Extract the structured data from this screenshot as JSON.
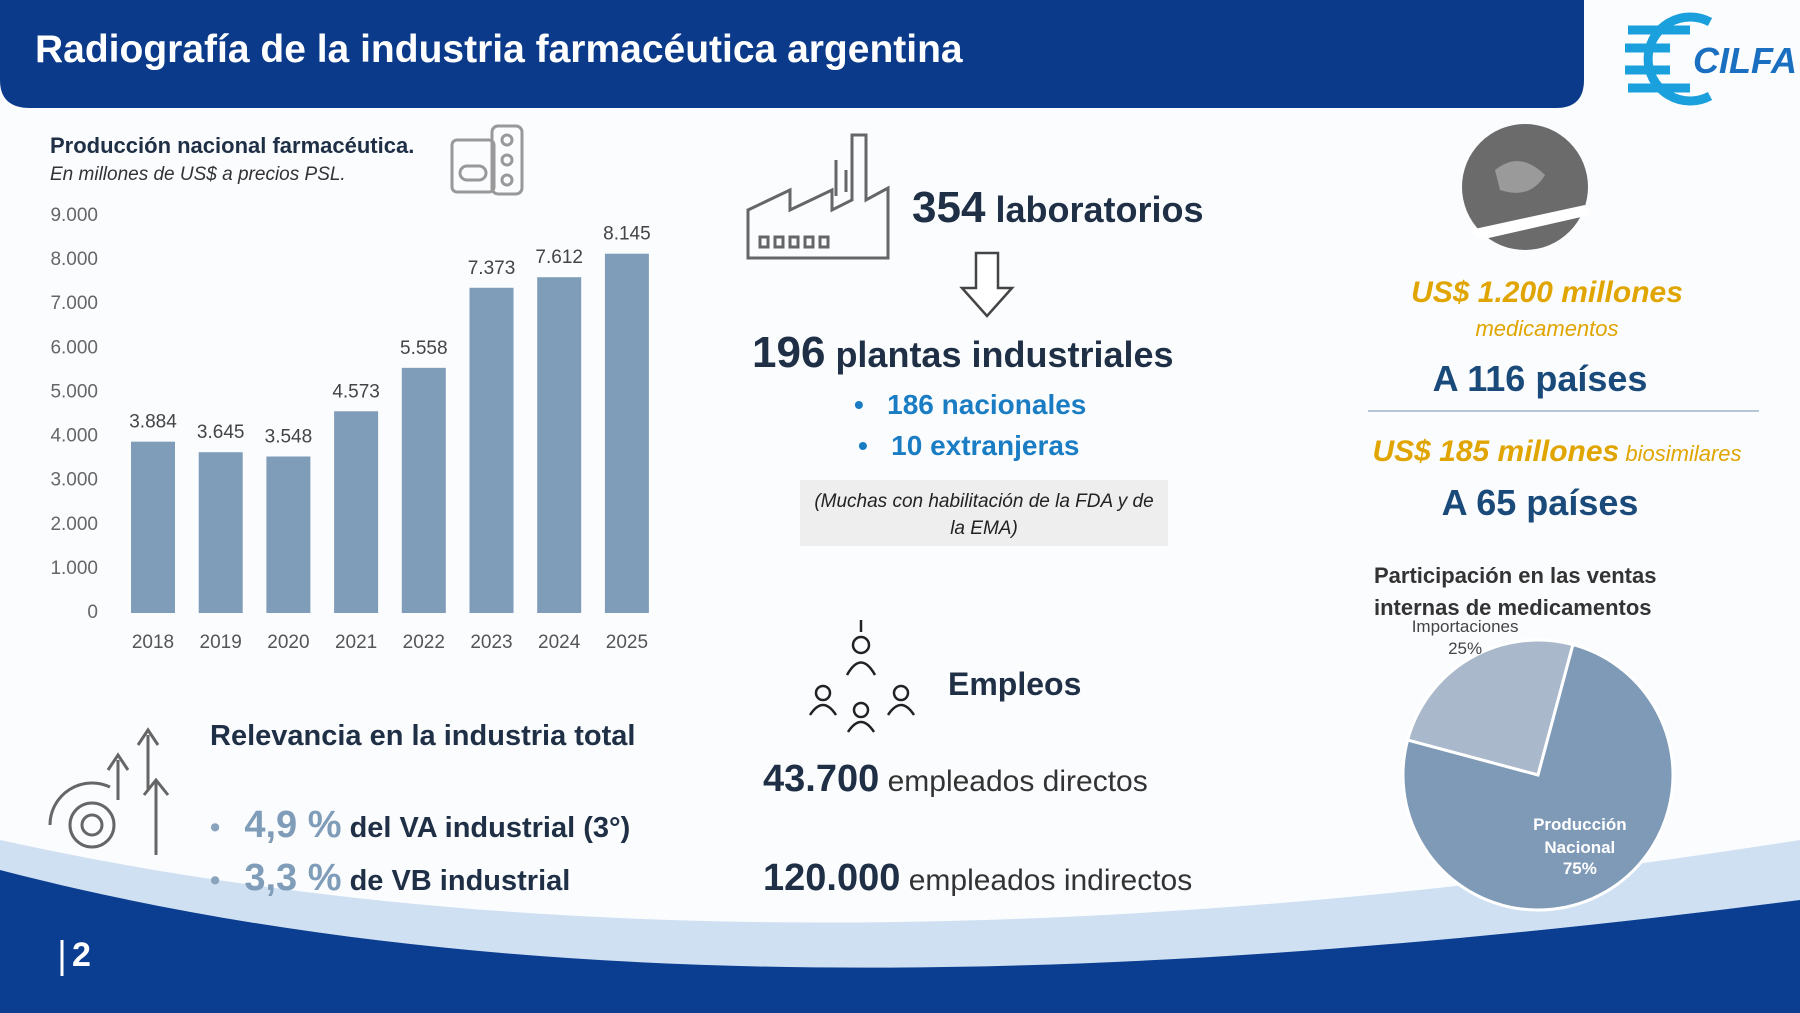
{
  "header": {
    "title": "Radiografía de la industria farmacéutica argentina",
    "logo": "CILFA",
    "page_number": "2"
  },
  "chart_data": [
    {
      "type": "bar",
      "title": "Producción nacional farmacéutica.",
      "subtitle": "En millones de US$ a precios PSL.",
      "categories": [
        "2018",
        "2019",
        "2020",
        "2021",
        "2022",
        "2023",
        "2024",
        "2025"
      ],
      "values": [
        3884,
        3645,
        3548,
        4573,
        5558,
        7373,
        7612,
        8145
      ],
      "value_labels": [
        "3.884",
        "3.645",
        "3.548",
        "4.573",
        "5.558",
        "7.373",
        "7.612",
        "8.145"
      ],
      "color": "#7f9cb9",
      "ylim": [
        0,
        9000
      ],
      "yticks": [
        0,
        {
          "value": 1000,
          "label": "1.000"
        },
        {
          "value": 2000,
          "label": "2.000"
        },
        {
          "value": 3000,
          "label": "3.000"
        },
        {
          "value": 4000,
          "label": "4.000"
        },
        {
          "value": 5000,
          "label": "5.000"
        },
        {
          "value": 6000,
          "label": "6.000"
        },
        {
          "value": 7000,
          "label": "7.000"
        },
        {
          "value": 8000,
          "label": "8.000"
        },
        {
          "value": 9000,
          "label": "9.000"
        }
      ]
    },
    {
      "type": "pie",
      "title": "Participación en las ventas internas de medicamentos",
      "categories": [
        "Importaciones",
        "Producción Nacional"
      ],
      "values": [
        25,
        75
      ],
      "value_labels": [
        "25%",
        "75%"
      ],
      "colors": [
        "#a9b8cb",
        "#7f9ab7"
      ]
    }
  ],
  "labs": {
    "count": "354",
    "label": "laboratorios"
  },
  "plants": {
    "count": "196",
    "label": "plantas industriales",
    "items": [
      "186 nacionales",
      "10 extranjeras"
    ],
    "note": "(Muchas con habilitación de la FDA y de la EMA)"
  },
  "employment": {
    "title": "Empleos",
    "items": [
      {
        "count": "43.700",
        "label": "empleados directos"
      },
      {
        "count": "120.000",
        "label": "empleados indirectos"
      }
    ]
  },
  "relevance": {
    "title": "Relevancia en la industria total",
    "items": [
      {
        "value": "4,9 %",
        "label": "del VA industrial (3°)"
      },
      {
        "value": "3,3 %",
        "label": "de VB industrial"
      }
    ]
  },
  "exports": [
    {
      "amount": "US$ 1.200 millones",
      "product": "medicamentos",
      "destination": "A 116 países"
    },
    {
      "amount": "US$ 185 millones",
      "product": "biosimilares",
      "destination": "A 65 países"
    }
  ]
}
